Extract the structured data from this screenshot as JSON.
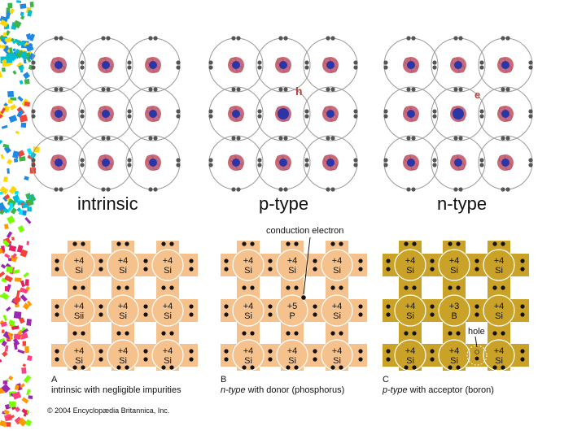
{
  "top": {
    "labels": [
      "intrinsic",
      "p-type",
      "n-type"
    ],
    "electron_symbol": "e",
    "hole_marker": "h",
    "extra_electron_marker": "e"
  },
  "bottom": {
    "panels": [
      {
        "letter": "A",
        "caption_italic": "",
        "caption_rest": "intrinsic with negligible impurities",
        "atoms": [
          [
            "+4",
            "Si"
          ],
          [
            "+4",
            "Si"
          ],
          [
            "+4",
            "Si"
          ],
          [
            "+4",
            "Sii"
          ],
          [
            "+4",
            "Si"
          ],
          [
            "+4",
            "Si"
          ],
          [
            "+4",
            "Si"
          ],
          [
            "+4",
            "Si"
          ],
          [
            "+4",
            "Si"
          ]
        ]
      },
      {
        "letter": "B",
        "caption_italic": "n-type",
        "caption_rest": " with donor (phosphorus)",
        "atoms": [
          [
            "+4",
            "Si"
          ],
          [
            "+4",
            "Si"
          ],
          [
            "+4",
            "Si"
          ],
          [
            "+4",
            "Si"
          ],
          [
            "+5",
            "P"
          ],
          [
            "+4",
            "Si"
          ],
          [
            "+4",
            "Si"
          ],
          [
            "+4",
            "Si"
          ],
          [
            "+4",
            "Si"
          ]
        ]
      },
      {
        "letter": "C",
        "caption_italic": "p-type",
        "caption_rest": " with acceptor (boron)",
        "atoms": [
          [
            "+4",
            "Si"
          ],
          [
            "+4",
            "Si"
          ],
          [
            "+4",
            "Si"
          ],
          [
            "+4",
            "Si"
          ],
          [
            "+3",
            "B"
          ],
          [
            "+4",
            "Si"
          ],
          [
            "+4",
            "Si"
          ],
          [
            "+4",
            "Si"
          ],
          [
            "+4",
            "Si"
          ]
        ]
      }
    ],
    "conduction_label": "conduction electron",
    "hole_label": "hole"
  },
  "copyright": "© 2004 Encyclopædia Britannica, Inc.",
  "colors": {
    "nucleus_blue": "#2a35a8",
    "nucleus_pink": "#c96a7a",
    "ring": "#9a9a9a",
    "panel_light": "#f5c28e",
    "panel_gold": "#c9a227",
    "marker_red": "#b5443a"
  }
}
